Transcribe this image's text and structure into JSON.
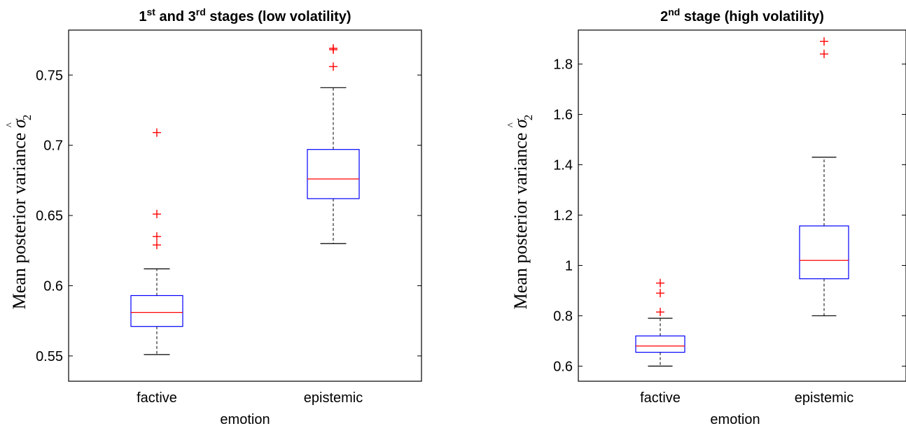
{
  "chart_data": [
    {
      "type": "box",
      "title": "1st and 3rd stages (low volatility)",
      "title_parts": [
        {
          "text": "1"
        },
        {
          "text": "st",
          "sup": true
        },
        {
          "text": " and 3"
        },
        {
          "text": "rd",
          "sup": true
        },
        {
          "text": " stages (low volatility)"
        }
      ],
      "xlabel": "emotion",
      "ylabel": "Mean posterior variance σ̂₂",
      "ylabel_text": "Mean posterior variance ",
      "ylabel_symbol": "σ",
      "ylabel_hat": "^",
      "ylabel_sub": "2",
      "categories": [
        "factive",
        "epistemic"
      ],
      "ylim": [
        0.532,
        0.782
      ],
      "yticks": [
        0.55,
        0.6,
        0.65,
        0.7,
        0.75
      ],
      "ytick_labels": [
        "0.55",
        "0.6",
        "0.65",
        "0.7",
        "0.75"
      ],
      "boxes": [
        {
          "category": "factive",
          "whisker_low": 0.551,
          "q1": 0.571,
          "median": 0.581,
          "q3": 0.593,
          "whisker_high": 0.612,
          "outliers": [
            0.629,
            0.635,
            0.651,
            0.709
          ]
        },
        {
          "category": "epistemic",
          "whisker_low": 0.63,
          "q1": 0.662,
          "median": 0.676,
          "q3": 0.697,
          "whisker_high": 0.741,
          "outliers": [
            0.756,
            0.768,
            0.769
          ]
        }
      ]
    },
    {
      "type": "box",
      "title": "2nd stage (high volatility)",
      "title_parts": [
        {
          "text": "2"
        },
        {
          "text": "nd",
          "sup": true
        },
        {
          "text": " stage (high volatility)"
        }
      ],
      "xlabel": "emotion",
      "ylabel": "Mean posterior variance σ̂₂",
      "ylabel_text": "Mean posterior variance ",
      "ylabel_symbol": "σ",
      "ylabel_hat": "^",
      "ylabel_sub": "2",
      "categories": [
        "factive",
        "epistemic"
      ],
      "ylim": [
        0.54,
        1.935
      ],
      "yticks": [
        0.6,
        0.8,
        1.0,
        1.2,
        1.4,
        1.6,
        1.8
      ],
      "ytick_labels": [
        "0.6",
        "0.8",
        "1",
        "1.2",
        "1.4",
        "1.6",
        "1.8"
      ],
      "boxes": [
        {
          "category": "factive",
          "whisker_low": 0.6,
          "q1": 0.655,
          "median": 0.68,
          "q3": 0.72,
          "whisker_high": 0.79,
          "outliers": [
            0.815,
            0.89,
            0.93
          ]
        },
        {
          "category": "epistemic",
          "whisker_low": 0.8,
          "q1": 0.947,
          "median": 1.02,
          "q3": 1.157,
          "whisker_high": 1.43,
          "outliers": [
            1.84,
            1.89
          ]
        }
      ]
    }
  ],
  "colors": {
    "box": "#0000ff",
    "median": "#ff0000",
    "outlier": "#ff0000",
    "whisker": "#000000",
    "axes": "#000000"
  }
}
